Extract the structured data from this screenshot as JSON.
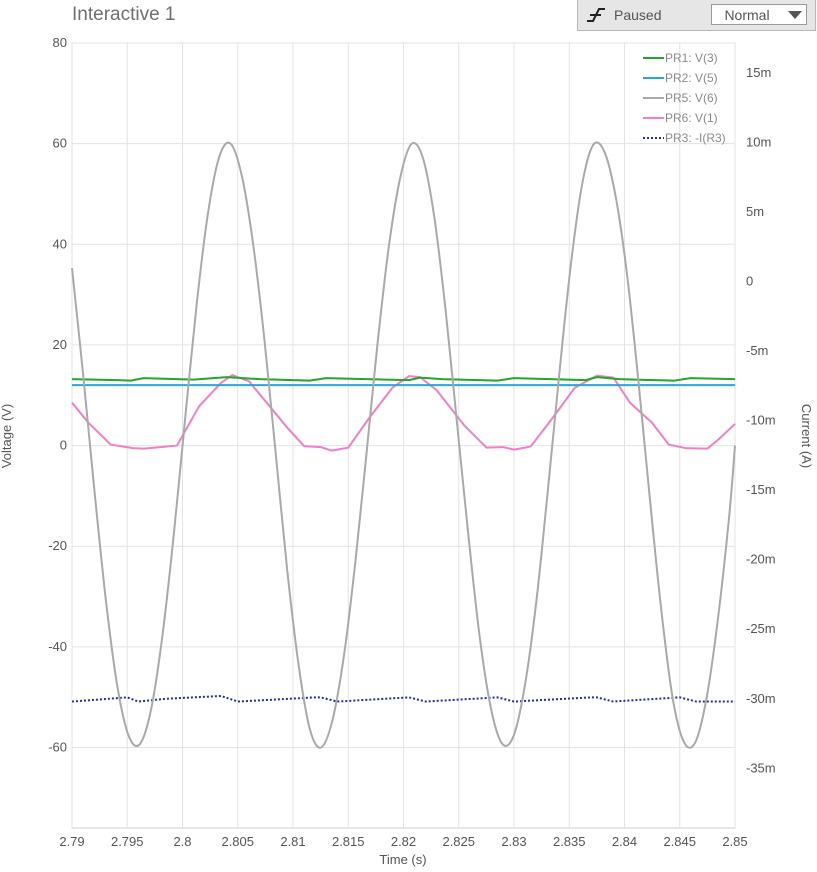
{
  "window": {
    "title": "Interactive 1",
    "status": "Paused",
    "mode": "Normal"
  },
  "chart_data": {
    "type": "line",
    "title": "",
    "xlabel": "Time (s)",
    "ylabel": "Voltage (V)",
    "y2label": "Current (A)",
    "xlim": [
      2.79,
      2.85
    ],
    "ylim": [
      -76,
      80
    ],
    "y2lim": [
      -39.29,
      17.14
    ],
    "x_ticks": [
      "2.79",
      "2.795",
      "2.8",
      "2.805",
      "2.81",
      "2.815",
      "2.82",
      "2.825",
      "2.83",
      "2.835",
      "2.84",
      "2.845",
      "2.85"
    ],
    "x_tick_values": [
      2.79,
      2.795,
      2.8,
      2.805,
      2.81,
      2.815,
      2.82,
      2.825,
      2.83,
      2.835,
      2.84,
      2.845,
      2.85
    ],
    "y_ticks": [
      "80",
      "60",
      "40",
      "20",
      "0",
      "-20",
      "-40",
      "-60"
    ],
    "y_tick_values": [
      80,
      60,
      40,
      20,
      0,
      -20,
      -40,
      -60
    ],
    "y2_ticks": [
      "15m",
      "10m",
      "5m",
      "0",
      "-5m",
      "-10m",
      "-15m",
      "-20m",
      "-25m",
      "-30m",
      "-35m"
    ],
    "y2_tick_values": [
      15,
      10,
      5,
      0,
      -5,
      -10,
      -15,
      -20,
      -25,
      -30,
      -35
    ],
    "grid": true,
    "legend_position": "top-right",
    "series": [
      {
        "name": "PR1: V(3)",
        "color": "#22a62e",
        "axis": "left",
        "style": "solid",
        "x": [
          2.79,
          2.794,
          2.7953,
          2.7965,
          2.801,
          2.804,
          2.807,
          2.8115,
          2.813,
          2.8205,
          2.8215,
          2.8235,
          2.8285,
          2.83,
          2.8365,
          2.8375,
          2.8395,
          2.8445,
          2.846,
          2.85
        ],
        "y": [
          13.2,
          13.0,
          12.9,
          13.4,
          13.1,
          13.6,
          13.2,
          12.9,
          13.4,
          13.0,
          13.5,
          13.2,
          12.9,
          13.4,
          13.0,
          13.6,
          13.2,
          12.9,
          13.4,
          13.2
        ]
      },
      {
        "name": "PR2: V(5)",
        "color": "#29a6d9",
        "axis": "left",
        "style": "solid",
        "x": [
          2.79,
          2.8,
          2.81,
          2.82,
          2.83,
          2.84,
          2.85
        ],
        "y": [
          12.0,
          12.0,
          12.0,
          12.0,
          12.0,
          12.0,
          12.0
        ]
      },
      {
        "name": "PR5: V(6)",
        "color": "#a9a9a9",
        "axis": "left",
        "style": "solid",
        "x": [
          2.79,
          2.79103,
          2.79205,
          2.79308,
          2.7941,
          2.79513,
          2.79615,
          2.79718,
          2.7982,
          2.79923,
          2.80025,
          2.80128,
          2.8023,
          2.80333,
          2.80435,
          2.80538,
          2.8064,
          2.80743,
          2.80845,
          2.80948,
          2.8105,
          2.81153,
          2.81255,
          2.81358,
          2.8146,
          2.81563,
          2.81665,
          2.81768,
          2.8187,
          2.81973,
          2.82075,
          2.82178,
          2.8228,
          2.82383,
          2.82485,
          2.82588,
          2.8269,
          2.82793,
          2.82895,
          2.82998,
          2.831,
          2.83203,
          2.83305,
          2.83408,
          2.8351,
          2.83613,
          2.83715,
          2.83818,
          2.8392,
          2.84023,
          2.84125,
          2.84228,
          2.8433,
          2.84433,
          2.84535,
          2.84638,
          2.8474,
          2.84843,
          2.84945,
          2.85
        ],
        "y": [
          35.3,
          13.6,
          -9.4,
          -31.0,
          -47.8,
          -57.7,
          -59.3,
          -52.2,
          -37.5,
          -17.3,
          5.6,
          28.0,
          46.1,
          57.4,
          60.0,
          53.5,
          39.9,
          20.7,
          -1.9,
          -24.8,
          -43.5,
          -56.4,
          -60.0,
          -54.5,
          -41.9,
          -23.4,
          -1.6,
          20.9,
          40.0,
          53.5,
          60.0,
          57.0,
          45.2,
          26.5,
          4.3,
          -18.0,
          -38.1,
          -52.4,
          -59.3,
          -57.6,
          -47.5,
          -30.8,
          -9.2,
          13.8,
          35.1,
          51.5,
          59.7,
          58.4,
          49.5,
          34.0,
          13.0,
          -10.2,
          -32.1,
          -49.8,
          -58.8,
          -59.1,
          -50.5,
          -34.9,
          -14.6,
          0.0
        ]
      },
      {
        "name": "PR6: V(1)",
        "color": "#f17ec6",
        "axis": "left",
        "style": "solid",
        "x": [
          2.79,
          2.7915,
          2.7935,
          2.7955,
          2.7965,
          2.798,
          2.7995,
          2.8015,
          2.8035,
          2.8045,
          2.806,
          2.808,
          2.8095,
          2.811,
          2.8125,
          2.8135,
          2.815,
          2.817,
          2.819,
          2.8205,
          2.8215,
          2.823,
          2.8255,
          2.8275,
          2.829,
          2.83,
          2.8315,
          2.8335,
          2.8355,
          2.8375,
          2.839,
          2.8405,
          2.8425,
          2.844,
          2.8455,
          2.8475,
          2.8485,
          2.85
        ],
        "y": [
          8.5,
          4.5,
          0.2,
          -0.5,
          -0.6,
          -0.3,
          0.0,
          7.8,
          12.5,
          14.0,
          12.8,
          7.5,
          3.5,
          -0.1,
          -0.3,
          -1.0,
          -0.4,
          5.8,
          11.5,
          13.8,
          13.6,
          11.0,
          4.0,
          -0.4,
          -0.3,
          -0.8,
          -0.2,
          5.5,
          11.5,
          13.9,
          13.5,
          8.5,
          4.5,
          0.2,
          -0.5,
          -0.6,
          1.2,
          4.3
        ]
      },
      {
        "name": "PR3: -I(R3)",
        "color": "#1f2ea8",
        "axis": "right",
        "style": "dotted",
        "x": [
          2.79,
          2.795,
          2.796,
          2.7985,
          2.8035,
          2.805,
          2.812,
          2.8125,
          2.814,
          2.8205,
          2.822,
          2.8285,
          2.83,
          2.837,
          2.8375,
          2.839,
          2.845,
          2.8465,
          2.85
        ],
        "y": [
          -30.2,
          -29.9,
          -30.2,
          -30.0,
          -29.8,
          -30.2,
          -29.9,
          -29.9,
          -30.2,
          -29.9,
          -30.2,
          -29.9,
          -30.2,
          -29.9,
          -29.9,
          -30.2,
          -29.9,
          -30.2,
          -30.2
        ]
      }
    ]
  }
}
